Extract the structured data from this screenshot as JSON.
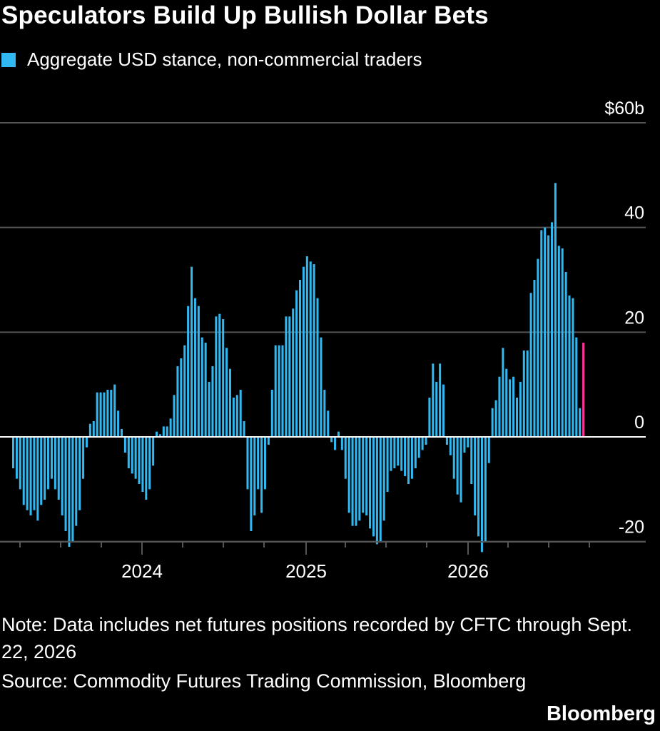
{
  "title": "Speculators Build Up Bullish Dollar Bets",
  "legend": {
    "label": "Aggregate USD stance, non-commercial traders"
  },
  "colors": {
    "bar": "#31b8f0",
    "highlight": "#ff3399",
    "background": "#000000",
    "grid": "#555555",
    "zero": "#ffffff"
  },
  "note": "Note: Data includes net futures positions recorded by CFTC through Sept. 22, 2026",
  "source": "Source: Commodity Futures Trading Commission, Bloomberg",
  "brand": "Bloomberg",
  "chart_data": {
    "type": "bar",
    "ylim": [
      -21,
      60
    ],
    "yticks": [
      {
        "value": 60,
        "label": "$60b"
      },
      {
        "value": 40,
        "label": "40"
      },
      {
        "value": 20,
        "label": "20"
      },
      {
        "value": 0,
        "label": "0"
      },
      {
        "value": -20,
        "label": "-20"
      }
    ],
    "xticks": [
      "2024",
      "2025",
      "2026"
    ],
    "grid": true,
    "series": [
      {
        "values": [
          -6,
          -8,
          -10,
          -13,
          -14,
          -15,
          -14,
          -16,
          -13,
          -12,
          -10,
          -8,
          -10,
          -12,
          -15,
          -18,
          -21,
          -20,
          -17,
          -14,
          -8,
          -2,
          2.5,
          3,
          8.5,
          8.5,
          8.5,
          9,
          9,
          10,
          5,
          1.5,
          -3,
          -6,
          -7,
          -8,
          -9,
          -10.5,
          -12,
          -10,
          -5.5,
          1,
          0.5,
          2,
          2,
          3.5,
          8,
          13.5,
          15,
          17.5,
          25,
          32.5,
          26.5,
          25,
          19,
          18,
          10.5,
          13.5,
          23,
          23.5,
          22.5,
          17,
          13,
          7.5,
          8,
          9,
          3,
          -10,
          -18,
          -15,
          -10,
          -14.5,
          -10,
          -1.5,
          9,
          17.5,
          17.5,
          17.5,
          23,
          23,
          24.5,
          28,
          30,
          32.5,
          34.5,
          33.5,
          33,
          26.5,
          19,
          9,
          5,
          -1,
          -2.5,
          1,
          -2.5,
          -8,
          -14.5,
          -17,
          -17,
          -16,
          -14.5,
          -15,
          -17.5,
          -19,
          -20.5,
          -20,
          -16,
          -10.5,
          -6.5,
          -6,
          -5.5,
          -6.5,
          -7.5,
          -9,
          -8,
          -6,
          -4,
          -2.5,
          -1.5,
          7.5,
          14,
          10.5,
          14,
          10,
          -1.5,
          -3.5,
          -8,
          -11,
          -12.5,
          -3,
          -2,
          -9,
          -15,
          -19,
          -22,
          -20,
          -5,
          5.5,
          7,
          11.5,
          17,
          13,
          11,
          11.5,
          7.5,
          10.5,
          16.5,
          16.5,
          27.5,
          30,
          34,
          39.5,
          40,
          38.5,
          41,
          48.5,
          36.5,
          36,
          31.5,
          27,
          26.5,
          19,
          5.5,
          18
        ]
      }
    ]
  }
}
